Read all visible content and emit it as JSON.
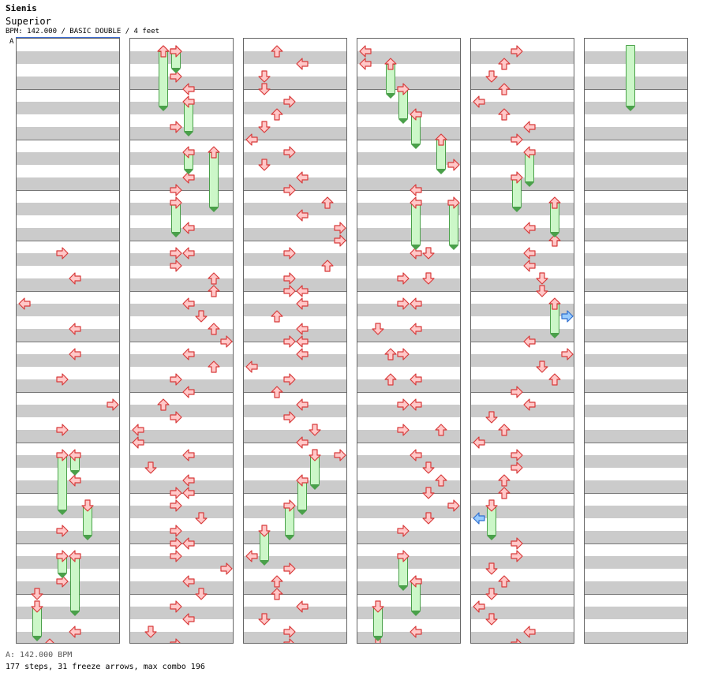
{
  "header": {
    "artist": "Sienis",
    "title": "Superior",
    "info": "BPM: 142.000 / BASIC DOUBLE / 4 feet",
    "marker": "A"
  },
  "footer": {
    "bpm_line": "A: 142.000 BPM",
    "stats_line": "177 steps, 31 freeze arrows, max combo 196"
  },
  "colors": {
    "arrow_fill": "#ffc8c8",
    "arrow_stroke": "#d83a3a",
    "special_arrow_fill": "#99ccff",
    "special_arrow_stroke": "#2f6fd0",
    "freeze_fill": "#ccf7c8",
    "freeze_stroke": "#4aa04a",
    "stripe": "#cbcbcb"
  },
  "chart": {
    "columns": 6,
    "measures_per_column": 12,
    "rows_per_measure": 4,
    "lanes": 8,
    "lane_directions": [
      "left",
      "down",
      "up",
      "right",
      "left",
      "down",
      "up",
      "right"
    ],
    "freeze_count": 31,
    "step_count": 177,
    "max_combo": 196
  }
}
